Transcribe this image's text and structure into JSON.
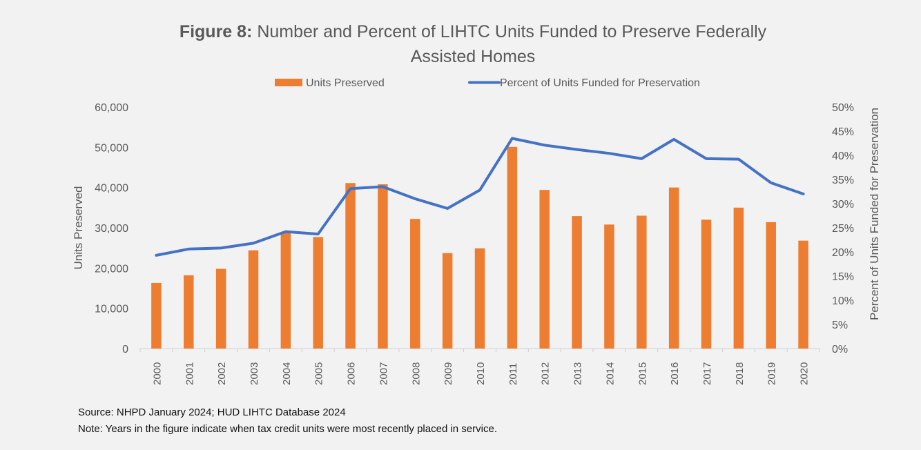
{
  "chart_data": {
    "type": "bar+line",
    "title_bold": "Figure 8:",
    "title_rest": "Number and Percent of LIHTC Units Funded to Preserve Federally Assisted Homes",
    "title_line1_rest": "Number and Percent of LIHTC Units Funded to Preserve Federally",
    "title_line2": "Assisted Homes",
    "categories": [
      "2000",
      "2001",
      "2002",
      "2003",
      "2004",
      "2005",
      "2006",
      "2007",
      "2008",
      "2009",
      "2010",
      "2011",
      "2012",
      "2013",
      "2014",
      "2015",
      "2016",
      "2017",
      "2018",
      "2019",
      "2020"
    ],
    "series": [
      {
        "name": "Units Preserved",
        "type": "bar",
        "axis": "left",
        "color": "#ED7D31",
        "values": [
          16300,
          18200,
          19800,
          24400,
          28900,
          27700,
          41100,
          40800,
          32200,
          23700,
          24900,
          50100,
          39400,
          32900,
          30800,
          33000,
          40000,
          32000,
          35000,
          31400,
          26800
        ]
      },
      {
        "name": "Percent of Units Funded for Preservation",
        "type": "line",
        "axis": "right",
        "color": "#4472C4",
        "values": [
          19.3,
          20.6,
          20.8,
          21.8,
          24.2,
          23.7,
          33.1,
          33.5,
          31.0,
          29.0,
          32.8,
          43.5,
          42.1,
          41.2,
          40.4,
          39.3,
          43.3,
          39.3,
          39.2,
          34.3,
          32.0
        ]
      }
    ],
    "ylabel_left": "Units Preserved",
    "ylabel_right": "Percent of Units Funded for Preservation",
    "xlabel": "",
    "ylim_left": [
      0,
      60000
    ],
    "ylim_right": [
      0,
      50
    ],
    "yticks_left": [
      "0",
      "10,000",
      "20,000",
      "30,000",
      "40,000",
      "50,000",
      "60,000"
    ],
    "yticks_right": [
      "0%",
      "5%",
      "10%",
      "15%",
      "20%",
      "25%",
      "30%",
      "35%",
      "40%",
      "45%",
      "50%"
    ],
    "grid": false,
    "legend_position": "top"
  },
  "footnotes": {
    "source": "Source: NHPD January 2024; HUD LIHTC Database 2024",
    "note": "Note: Years in the figure indicate when tax credit units were most recently placed in service."
  }
}
